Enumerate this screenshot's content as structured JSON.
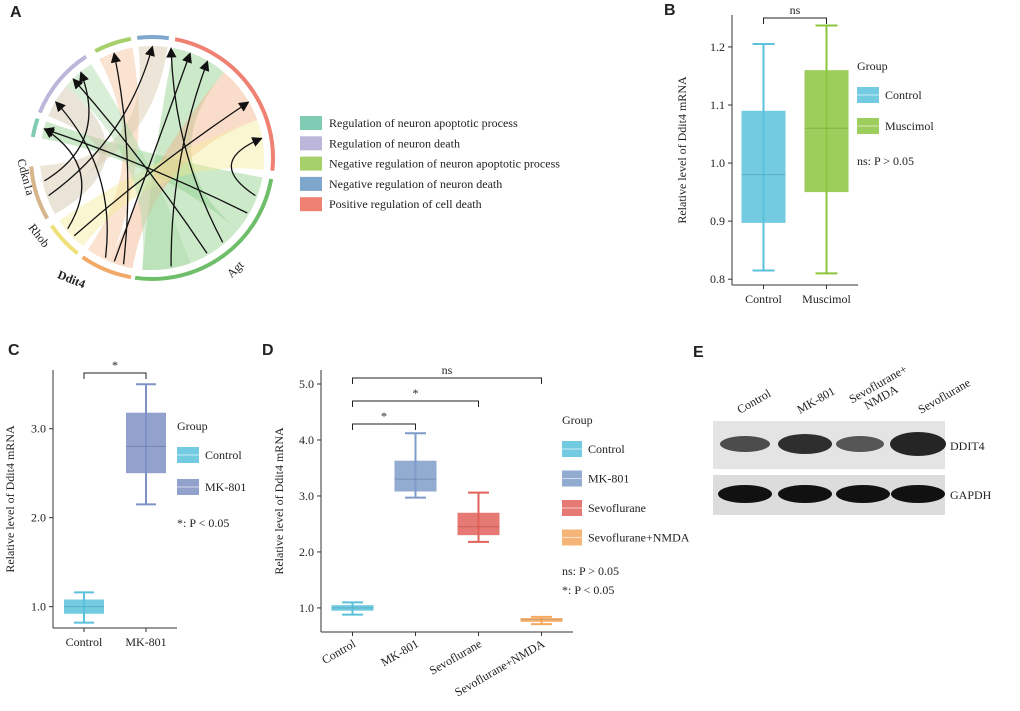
{
  "panel_a": {
    "label": "A",
    "genes": [
      "Cdkn1a",
      "Rhob",
      "Ddit4",
      "Agt"
    ],
    "legend": [
      {
        "name": "Regulation of neuron apoptotic process",
        "color": "#7fcbb4"
      },
      {
        "name": "Regulation of neuron death",
        "color": "#bdb6db"
      },
      {
        "name": "Negative regulation of neuron apoptotic process",
        "color": "#a6d06a"
      },
      {
        "name": "Negative regulation of neuron death",
        "color": "#7fa7cd"
      },
      {
        "name": "Positive regulation of cell death",
        "color": "#ef8172"
      }
    ]
  },
  "chart_data": [
    {
      "type": "box",
      "panel": "B",
      "ylabel": "Relative level of Ddit4 mRNA",
      "categories": [
        "Control",
        "Muscimol"
      ],
      "colors": [
        "#5bc2dc",
        "#8cc63f"
      ],
      "stats": {
        "min": [
          0.815,
          0.81
        ],
        "q1": [
          0.897,
          0.95
        ],
        "median": [
          0.98,
          1.06
        ],
        "q3": [
          1.09,
          1.16
        ],
        "max": [
          1.205,
          1.237
        ]
      },
      "ylim": [
        0.79,
        1.255
      ],
      "yticks": [
        0.8,
        0.9,
        {
          "value": 1,
          "label": "1.0"
        },
        1.1,
        1.2
      ],
      "legend_title": "Group",
      "comparisons": [
        {
          "between": [
            "Control",
            "Muscimol"
          ],
          "label": "ns"
        }
      ],
      "notes": [
        "ns: P > 0.05"
      ]
    },
    {
      "type": "box",
      "panel": "C",
      "ylabel": "Relative level of Ddit4 mRNA",
      "categories": [
        "Control",
        "MK-801"
      ],
      "colors": [
        "#5bc2dc",
        "#7f92c4"
      ],
      "stats": {
        "min": [
          0.82,
          2.15
        ],
        "q1": [
          0.92,
          2.5
        ],
        "median": [
          1.0,
          2.8
        ],
        "q3": [
          1.08,
          3.18
        ],
        "max": [
          1.16,
          3.5
        ]
      },
      "ylim": [
        0.76,
        3.66
      ],
      "yticks": [
        {
          "value": 1,
          "label": "1.0"
        },
        {
          "value": 2,
          "label": "2.0"
        },
        {
          "value": 3,
          "label": "3.0"
        }
      ],
      "legend_title": "Group",
      "comparisons": [
        {
          "between": [
            "Control",
            "MK-801"
          ],
          "label": "*"
        }
      ],
      "notes": [
        "*: P < 0.05"
      ]
    },
    {
      "type": "box",
      "panel": "D",
      "ylabel": "Relative level of Ddit4 mRNA",
      "categories": [
        "Control",
        "MK-801",
        "Sevoflurane",
        "Sevoflurane+NMDA"
      ],
      "colors": [
        "#5bc2dc",
        "#7f9cc8",
        "#e2615a",
        "#f4a860"
      ],
      "stats": {
        "min": [
          0.88,
          2.97,
          2.18,
          0.71
        ],
        "q1": [
          0.95,
          3.08,
          2.3,
          0.75
        ],
        "median": [
          1.0,
          3.3,
          2.45,
          0.79
        ],
        "q3": [
          1.05,
          3.63,
          2.7,
          0.82
        ],
        "max": [
          1.1,
          4.12,
          3.06,
          0.84
        ]
      },
      "ylim": [
        0.57,
        5.25
      ],
      "yticks": [
        {
          "value": 1,
          "label": "1.0"
        },
        {
          "value": 2,
          "label": "2.0"
        },
        {
          "value": 3,
          "label": "3.0"
        },
        {
          "value": 4,
          "label": "4.0"
        },
        {
          "value": 5,
          "label": "5.0"
        }
      ],
      "legend_title": "Group",
      "comparisons": [
        {
          "between": [
            "Control",
            "MK-801"
          ],
          "label": "*"
        },
        {
          "between": [
            "Control",
            "Sevoflurane"
          ],
          "label": "*"
        },
        {
          "between": [
            "Control",
            "Sevoflurane+NMDA"
          ],
          "label": "ns"
        }
      ],
      "notes": [
        "ns: P > 0.05",
        "*: P < 0.05"
      ]
    }
  ],
  "panel_e": {
    "label": "E",
    "lanes": [
      [
        "Control"
      ],
      [
        "MK-801"
      ],
      [
        "Sevoflurane+",
        "NMDA"
      ],
      [
        "Sevoflurane"
      ]
    ],
    "rows": [
      "DDIT4",
      "GAPDH"
    ]
  }
}
